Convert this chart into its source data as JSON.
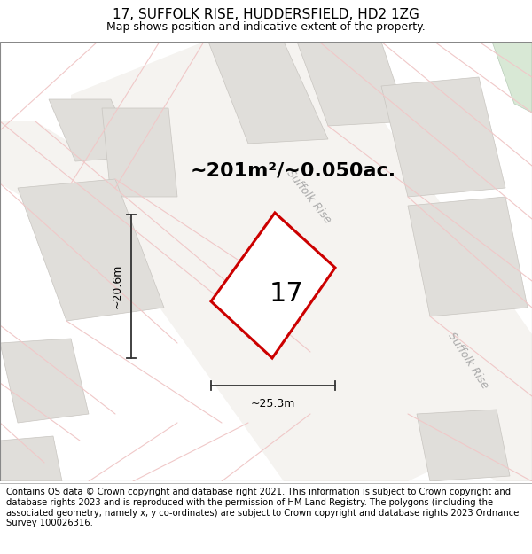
{
  "title": "17, SUFFOLK RISE, HUDDERSFIELD, HD2 1ZG",
  "subtitle": "Map shows position and indicative extent of the property.",
  "area_text": "~201m²/~0.050ac.",
  "width_text": "~25.3m",
  "height_text": "~20.6m",
  "plot_number": "17",
  "footer": "Contains OS data © Crown copyright and database right 2021. This information is subject to Crown copyright and database rights 2023 and is reproduced with the permission of HM Land Registry. The polygons (including the associated geometry, namely x, y co-ordinates) are subject to Crown copyright and database rights 2023 Ordnance Survey 100026316.",
  "bg_color": "#f2f0ed",
  "plot_fill": "#ffffff",
  "plot_edge": "#cc0000",
  "building_color": "#e0deda",
  "building_edge": "#c8c5c0",
  "green_color": "#d8e8d5",
  "road_pink": "#f0c8c8",
  "road_fill": "#faf9f7",
  "street_label_color": "#aaaaaa",
  "title_fontsize": 11,
  "subtitle_fontsize": 9,
  "area_fontsize": 16,
  "plot_num_fontsize": 22,
  "measure_fontsize": 9,
  "footer_fontsize": 7.2
}
